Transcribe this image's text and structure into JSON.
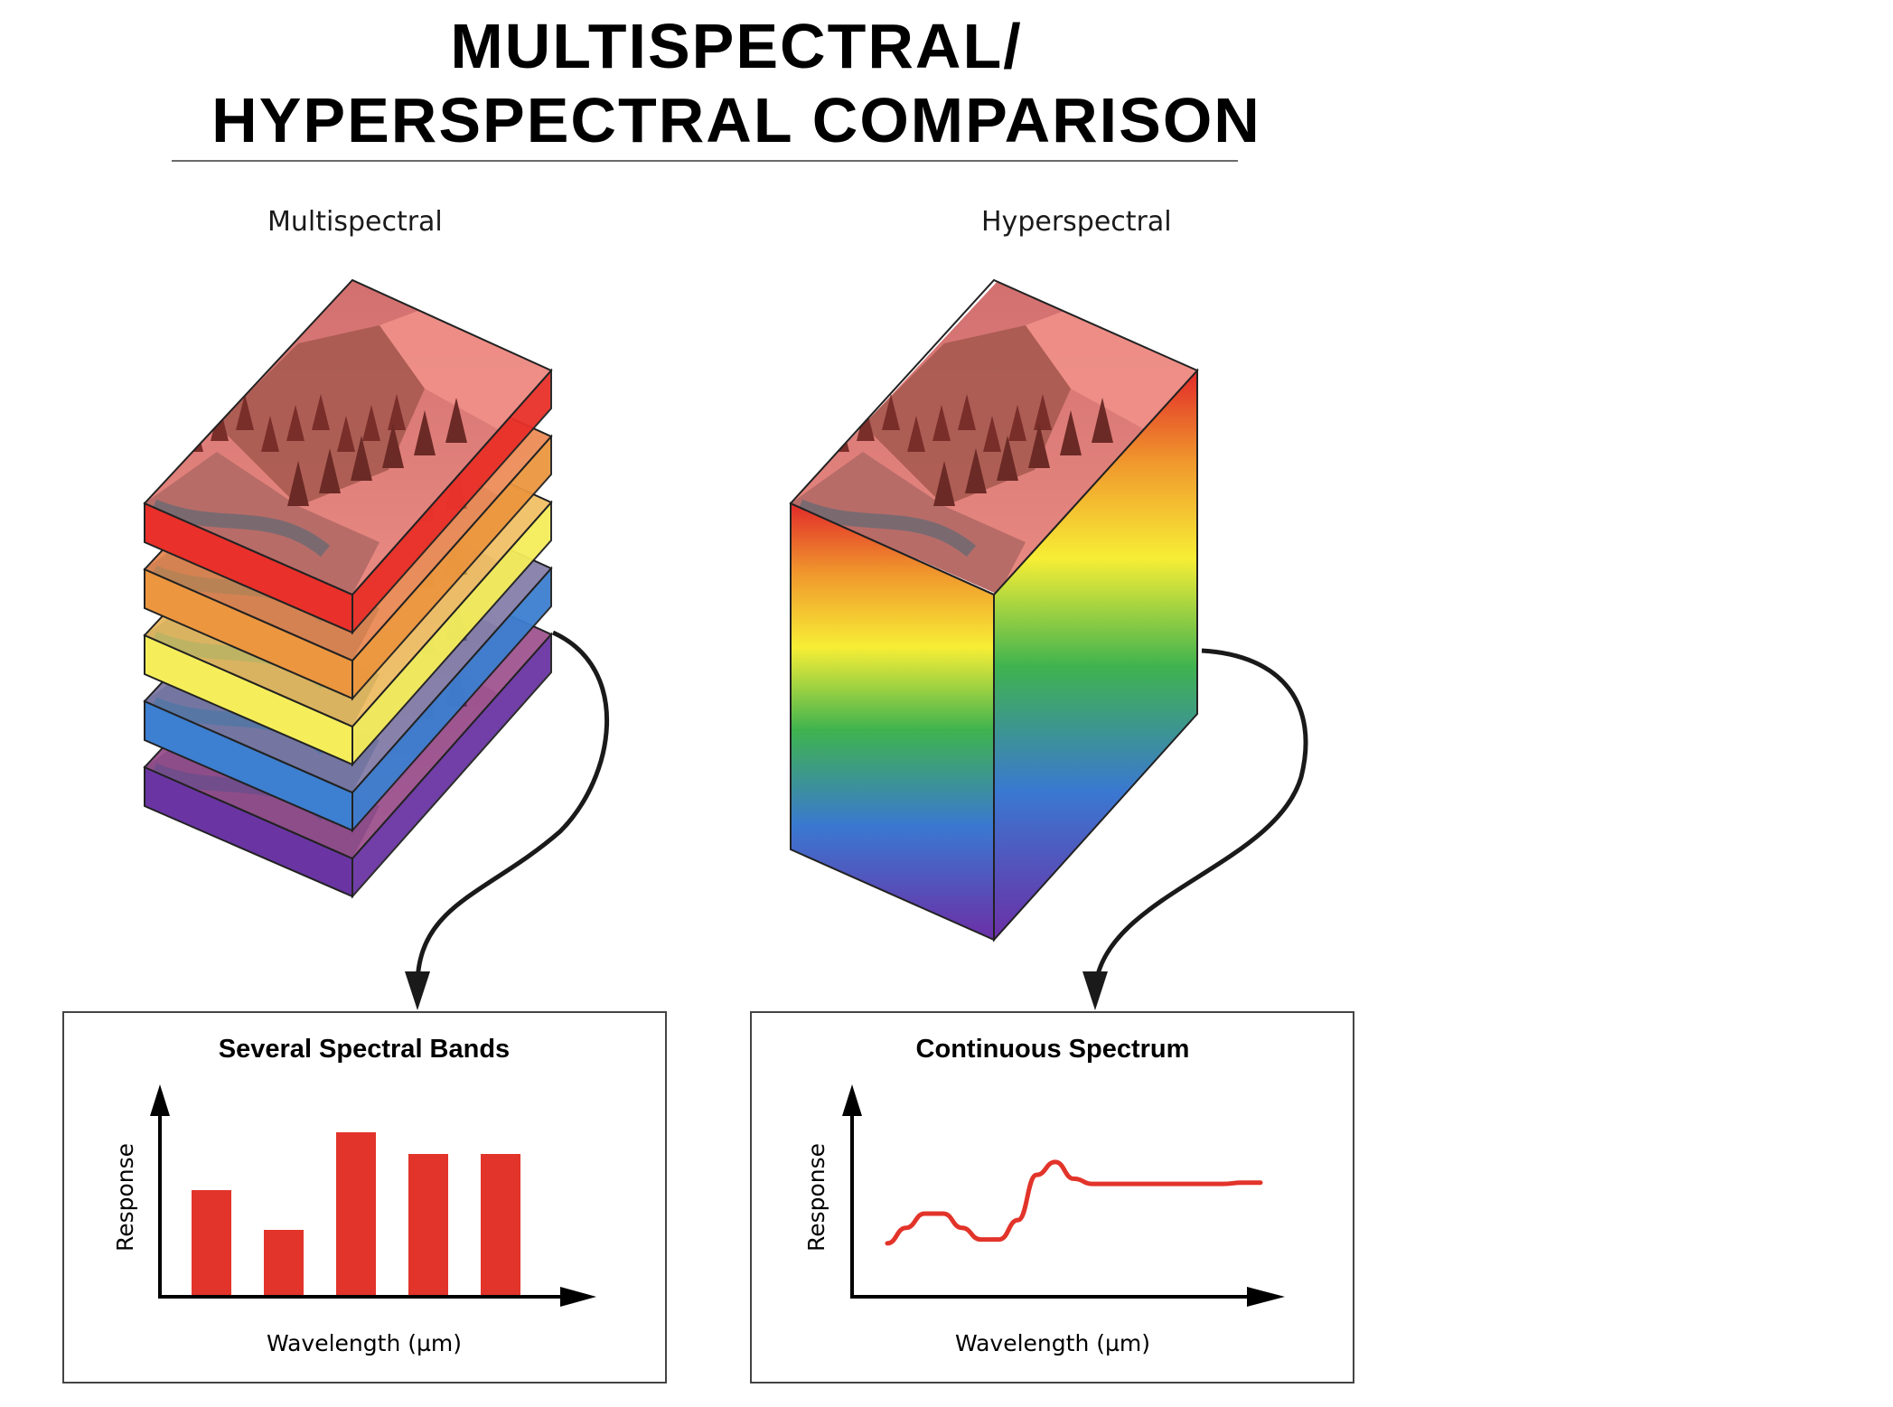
{
  "title": {
    "line1": "MULTISPECTRAL/",
    "line2": "HYPERSPECTRAL COMPARISON"
  },
  "left": {
    "label": "Multispectral",
    "layer_colors": [
      "#e9302a",
      "#ec963f",
      "#f5ee5a",
      "#3d7fd0",
      "#6a35a3"
    ]
  },
  "right": {
    "label": "Hyperspectral",
    "spectrum_colors": [
      "#e22a2a",
      "#f0972d",
      "#f7ee35",
      "#3fb34f",
      "#3a78d1",
      "#6c2fa6"
    ]
  },
  "chart_data": [
    {
      "type": "bar",
      "title": "Several Spectral Bands",
      "xlabel": "Wavelength (µm)",
      "ylabel": "Response",
      "categories": [
        "",
        "",
        "",
        "",
        ""
      ],
      "values": [
        5.8,
        3.6,
        9.0,
        7.8,
        7.8
      ],
      "ylim": [
        0,
        10
      ],
      "color": "#e2342a"
    },
    {
      "type": "line",
      "title": "Continuous Spectrum",
      "xlabel": "Wavelength (µm)",
      "ylabel": "Response",
      "x": [
        0,
        5,
        10,
        15,
        20,
        25,
        30,
        35,
        40,
        45,
        50,
        55,
        60,
        65,
        70,
        75,
        80,
        85,
        90,
        95,
        100
      ],
      "values": [
        4.0,
        5.2,
        6.3,
        6.3,
        5.2,
        4.3,
        4.3,
        5.8,
        9.3,
        10.3,
        9.0,
        8.6,
        8.6,
        8.6,
        8.6,
        8.6,
        8.6,
        8.6,
        8.6,
        8.7,
        8.7
      ],
      "ylim": [
        0,
        14
      ],
      "color": "#e2342a"
    }
  ]
}
